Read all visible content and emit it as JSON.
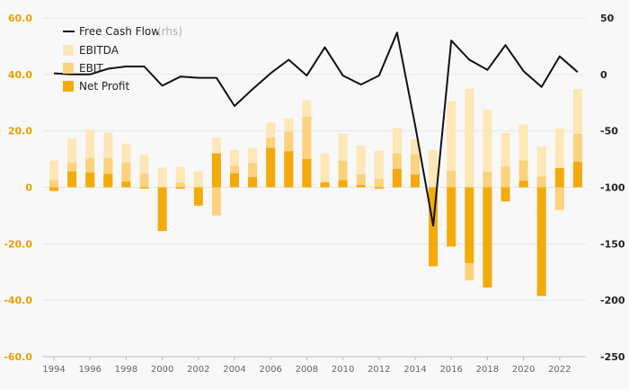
{
  "chart_data": {
    "type": "bar",
    "x_tick_labels": [
      "1994",
      "1996",
      "1998",
      "2000",
      "2002",
      "2004",
      "2006",
      "2008",
      "2010",
      "2012",
      "2014",
      "2016",
      "2018",
      "2020",
      "2022"
    ],
    "years": [
      1994,
      1995,
      1996,
      1997,
      1998,
      1999,
      2000,
      2001,
      2002,
      2003,
      2004,
      2005,
      2006,
      2007,
      2008,
      2009,
      2010,
      2011,
      2012,
      2013,
      2014,
      2015,
      2016,
      2017,
      2018,
      2019,
      2020,
      2021,
      2022,
      2023
    ],
    "left_axis": {
      "ylim": [
        -60,
        60
      ],
      "ticks": [
        "60.0",
        "40.0",
        "20.0",
        "0",
        "-20.0",
        "-40.0",
        "-60.0"
      ],
      "tick_values": [
        60,
        40,
        20,
        0,
        -20,
        -40,
        -60
      ]
    },
    "right_axis": {
      "ylim": [
        -250,
        50
      ],
      "ticks": [
        "50",
        "0",
        "-50",
        "-100",
        "-150",
        "-200",
        "-250"
      ],
      "tick_values": [
        50,
        0,
        -50,
        -100,
        -150,
        -200,
        -250
      ]
    },
    "legend": {
      "fcf": "Free Cash Flow",
      "fcf_suffix": "(rhs)",
      "ebitda": "EBITDA",
      "ebit": "EBIT",
      "net_profit": "Net Profit"
    },
    "colors": {
      "ebitda": "#fde7b6",
      "ebit": "#fbd27d",
      "net_profit": "#f4aa0a",
      "fcf": "#111111"
    },
    "series": [
      {
        "name": "EBITDA",
        "values": [
          9.5,
          17.2,
          20.4,
          19.5,
          15.5,
          11.5,
          7.0,
          7.3,
          5.7,
          17.5,
          13.3,
          14.0,
          23.0,
          24.5,
          31.0,
          12.0,
          19.0,
          14.7,
          13.0,
          21.0,
          17.0,
          13.3,
          30.5,
          35.0,
          27.5,
          19.3,
          22.3,
          14.5,
          21.0,
          34.8
        ]
      },
      {
        "name": "EBIT",
        "values": [
          2.5,
          8.8,
          10.3,
          10.3,
          8.8,
          4.8,
          0.0,
          1.6,
          -1.0,
          -10.0,
          7.6,
          8.6,
          17.6,
          19.7,
          25.0,
          1.2,
          9.4,
          4.6,
          3.0,
          12.0,
          11.7,
          -1.5,
          5.8,
          -33.0,
          5.5,
          7.3,
          9.5,
          3.8,
          -8.0,
          19.0
        ]
      },
      {
        "name": "Net Profit",
        "values": [
          -1.3,
          5.6,
          5.2,
          4.7,
          2.0,
          -0.5,
          -15.5,
          -0.5,
          -6.5,
          12.0,
          5.0,
          3.6,
          14.0,
          12.8,
          10.0,
          1.8,
          2.5,
          0.8,
          -0.5,
          6.5,
          4.5,
          -28.0,
          -21.0,
          -26.8,
          -35.5,
          -5.0,
          2.3,
          -38.5,
          6.8,
          9.0
        ]
      },
      {
        "name": "Free Cash Flow",
        "axis": "right",
        "values": [
          1,
          0,
          0,
          5,
          7,
          7,
          -10,
          -2,
          -3,
          -3,
          -28,
          -13,
          1,
          13,
          -1,
          24,
          -1,
          -9,
          -1,
          37,
          -45,
          -134,
          30,
          13,
          4,
          26,
          3,
          -11,
          16,
          2
        ]
      }
    ]
  }
}
